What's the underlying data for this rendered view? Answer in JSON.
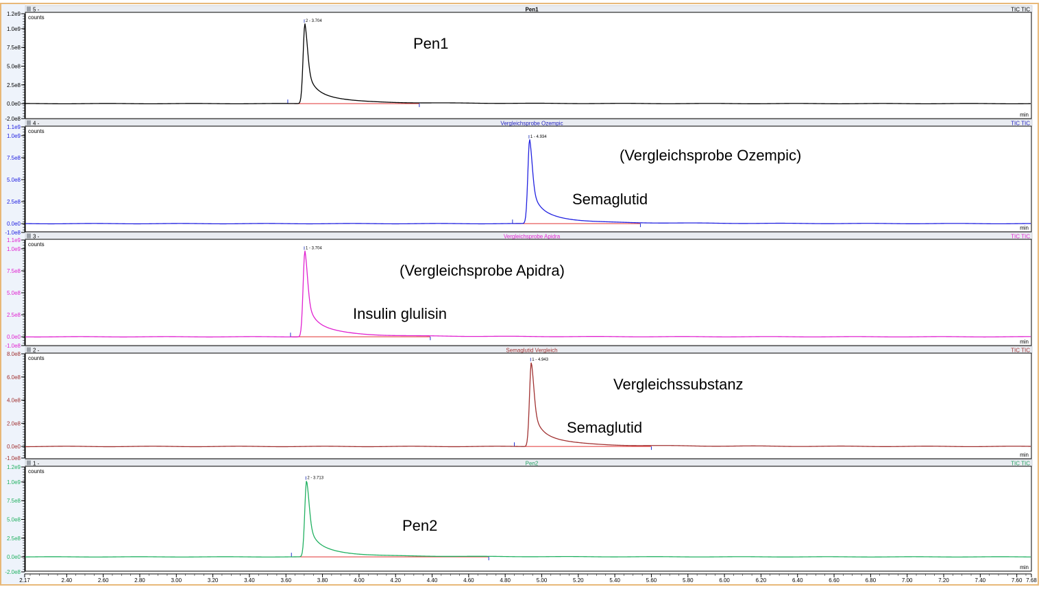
{
  "chart_data": {
    "type": "line",
    "x_axis": {
      "range": [
        2.17,
        7.68
      ],
      "ticks": [
        "2.17",
        "2.40",
        "2.60",
        "2.80",
        "3.00",
        "3.20",
        "3.40",
        "3.60",
        "3.80",
        "4.00",
        "4.20",
        "4.40",
        "4.60",
        "4.80",
        "5.00",
        "5.20",
        "5.40",
        "5.60",
        "5.80",
        "6.00",
        "6.20",
        "6.40",
        "6.60",
        "6.80",
        "7.00",
        "7.20",
        "7.40",
        "7.60",
        "7.68"
      ],
      "unit": "min"
    },
    "y_unit": "counts",
    "trace_type": "TIC TIC",
    "grid": false,
    "panels": [
      {
        "index": "5 -",
        "title": "Pen1",
        "color": "#000000",
        "title_color": "#000000",
        "axis_color": "#000000",
        "ylim": [
          -200000000.0,
          1200000000.0
        ],
        "yticks": [
          "1.2e9",
          "1.0e9",
          "7.5e8",
          "5.0e8",
          "2.5e8",
          "0.0e0",
          "-2.0e8"
        ],
        "ytick_values": [
          1200000000.0,
          1000000000.0,
          750000000.0,
          500000000.0,
          250000000.0,
          0,
          -200000000.0
        ],
        "peak": {
          "label": "2 - 3.704",
          "rt": 3.704,
          "height": 1070000000.0
        },
        "integration": [
          3.61,
          4.33
        ],
        "annotations": [
          "Pen1"
        ]
      },
      {
        "index": "4 -",
        "title": "Vergleichsprobe Ozempic",
        "color": "#2020e0",
        "title_color": "#2020c0",
        "axis_color": "#2020e0",
        "ylim": [
          -100000000.0,
          1100000000.0
        ],
        "yticks": [
          "1.1e9",
          "1.0e9",
          "7.5e8",
          "5.0e8",
          "2.5e8",
          "0.0e0",
          "-1.0e8"
        ],
        "ytick_values": [
          1100000000.0,
          1000000000.0,
          750000000.0,
          500000000.0,
          250000000.0,
          0,
          -100000000.0
        ],
        "peak": {
          "label": "1 - 4.934",
          "rt": 4.934,
          "height": 960000000.0
        },
        "integration": [
          4.84,
          5.54
        ],
        "annotations": [
          "(Vergleichsprobe Ozempic)",
          "Semaglutid"
        ]
      },
      {
        "index": "3 -",
        "title": "Vergleichsprobe Apidra",
        "color": "#e020d0",
        "title_color": "#e020d0",
        "axis_color": "#e020d0",
        "ylim": [
          -100000000.0,
          1100000000.0
        ],
        "yticks": [
          "1.1e9",
          "1.0e9",
          "7.5e8",
          "5.0e8",
          "2.5e8",
          "0.0e0",
          "-1.0e8"
        ],
        "ytick_values": [
          1100000000.0,
          1000000000.0,
          750000000.0,
          500000000.0,
          250000000.0,
          0,
          -100000000.0
        ],
        "peak": {
          "label": "1 - 3.704",
          "rt": 3.704,
          "height": 980000000.0
        },
        "integration": [
          3.625,
          4.39
        ],
        "annotations": [
          "(Vergleichsprobe Apidra)",
          "Insulin glulisin"
        ]
      },
      {
        "index": "2 -",
        "title": "Semaglutid Vergleich",
        "color": "#a03030",
        "title_color": "#a03030",
        "axis_color": "#a03030",
        "ylim": [
          -100000000.0,
          800000000.0
        ],
        "yticks": [
          "8.0e8",
          "6.0e8",
          "4.0e8",
          "2.0e8",
          "0.0e0",
          "-1.0e8"
        ],
        "ytick_values": [
          800000000.0,
          600000000.0,
          400000000.0,
          200000000.0,
          0,
          -100000000.0
        ],
        "peak": {
          "label": "1 - 4.943",
          "rt": 4.943,
          "height": 730000000.0
        },
        "integration": [
          4.85,
          5.6
        ],
        "annotations": [
          "Vergleichssubstanz",
          "Semaglutid"
        ]
      },
      {
        "index": "1 -",
        "title": "Pen2",
        "color": "#20b060",
        "title_color": "#20a060",
        "axis_color": "#20b060",
        "ylim": [
          -200000000.0,
          1200000000.0
        ],
        "yticks": [
          "1.2e9",
          "1.0e9",
          "7.5e8",
          "5.0e8",
          "2.5e8",
          "0.0e0",
          "-2.0e8"
        ],
        "ytick_values": [
          1200000000.0,
          1000000000.0,
          750000000.0,
          500000000.0,
          250000000.0,
          0,
          -200000000.0
        ],
        "peak": {
          "label": "2 - 3.713",
          "rt": 3.713,
          "height": 1020000000.0
        },
        "integration": [
          3.63,
          4.71
        ],
        "annotations": [
          "Pen2"
        ]
      }
    ]
  }
}
